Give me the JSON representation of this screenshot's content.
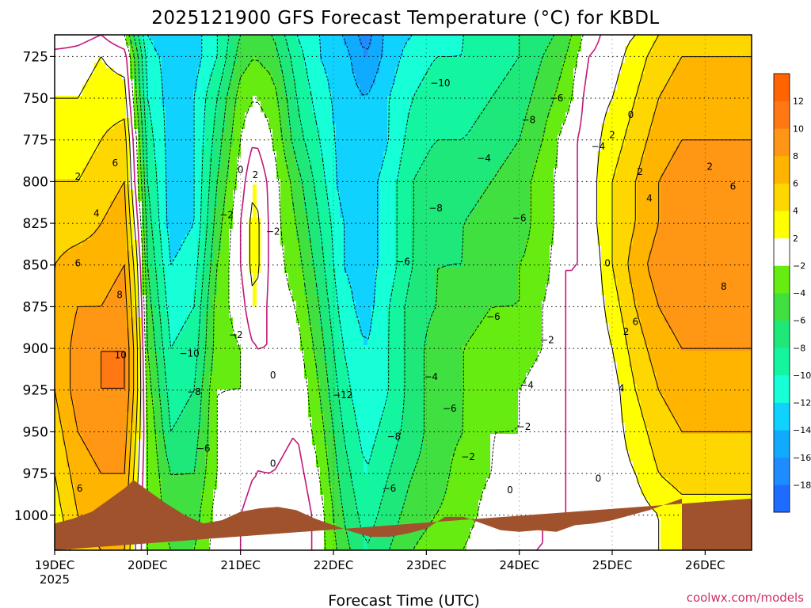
{
  "chart_data": {
    "type": "heatmap",
    "title": "2025121900 GFS Forecast Temperature (°C) for KBDL",
    "xlabel": "Forecast Time (UTC)",
    "ylabel": "",
    "credit": "coolwx.com/models",
    "x_ticks": [
      "19DEC",
      "20DEC",
      "21DEC",
      "22DEC",
      "23DEC",
      "24DEC",
      "25DEC",
      "26DEC"
    ],
    "x_year_label": "2025",
    "x_range_days": [
      0,
      7.5
    ],
    "y_ticks": [
      725,
      750,
      775,
      800,
      825,
      850,
      875,
      900,
      925,
      950,
      975,
      1000
    ],
    "y_range_hpa": [
      712,
      1021
    ],
    "y_direction": "pressure decreasing upward",
    "colorbar": {
      "levels": [
        -20,
        -18,
        -16,
        -14,
        -12,
        -10,
        -8,
        -6,
        -4,
        -2,
        2,
        4,
        6,
        8,
        10,
        12,
        14
      ],
      "tick_labels": [
        "-18",
        "-16",
        "-14",
        "-12",
        "-10",
        "-8",
        "-6",
        "-4",
        "-2",
        "2",
        "4",
        "6",
        "8",
        "10",
        "12"
      ],
      "colors": [
        "#1e6cff",
        "#1e8cff",
        "#10aaff",
        "#10d2ff",
        "#16ffd6",
        "#14f5a0",
        "#1ee87a",
        "#40e040",
        "#66ec10",
        "#ffffff",
        "#ffff00",
        "#ffd700",
        "#ffb400",
        "#ff9614",
        "#ff7814",
        "#ff6400"
      ]
    },
    "profiles": [
      {
        "t": 0.0,
        "temps": [
          -2,
          1,
          2,
          3,
          4,
          5,
          6,
          6,
          6,
          6,
          5,
          4,
          3,
          2
        ]
      },
      {
        "t": 0.25,
        "temps": [
          -1,
          1,
          2,
          3,
          4,
          5,
          7,
          8,
          9,
          9,
          8,
          7,
          6,
          5
        ]
      },
      {
        "t": 0.5,
        "temps": [
          0,
          2,
          3,
          4,
          5,
          6,
          7,
          8,
          10,
          10,
          9,
          8,
          7,
          6
        ]
      },
      {
        "t": 0.75,
        "temps": [
          -2,
          1,
          3,
          5,
          6,
          7,
          8,
          9,
          10,
          10,
          9,
          8,
          7,
          6
        ]
      },
      {
        "t": 0.9,
        "temps": [
          -8,
          -6,
          -5,
          -3,
          -2,
          0,
          2,
          3,
          4,
          4,
          3,
          2,
          1,
          1
        ]
      },
      {
        "t": 1.0,
        "temps": [
          -12,
          -11,
          -10,
          -9,
          -8,
          -7,
          -6,
          -5,
          -4,
          -3,
          -2,
          -2,
          -2,
          -2
        ]
      },
      {
        "t": 1.25,
        "temps": [
          -14,
          -13,
          -13,
          -13,
          -13,
          -13,
          -12,
          -11,
          -10,
          -9,
          -8,
          -6,
          -5,
          -4
        ]
      },
      {
        "t": 1.5,
        "temps": [
          -13,
          -13,
          -12,
          -12,
          -12,
          -12,
          -11,
          -10,
          -9,
          -8,
          -7,
          -6,
          -5,
          -4
        ]
      },
      {
        "t": 1.75,
        "temps": [
          -10,
          -10,
          -8,
          -7,
          -6,
          -5,
          -4,
          -3,
          -3,
          -2,
          -2,
          -2,
          -1,
          -1
        ]
      },
      {
        "t": 2.0,
        "temps": [
          -6,
          -5,
          -3,
          -2,
          -1,
          0,
          0,
          -1,
          -2,
          -2,
          -1,
          -1,
          0,
          0
        ]
      },
      {
        "t": 2.15,
        "temps": [
          -5,
          -4,
          -2,
          0,
          2,
          3,
          3,
          2,
          0,
          -1,
          0,
          0,
          1,
          1
        ]
      },
      {
        "t": 2.35,
        "temps": [
          -6,
          -5,
          -3,
          -2,
          -1,
          -1,
          -1,
          -1,
          0,
          -1,
          -1,
          0,
          1,
          1
        ]
      },
      {
        "t": 2.6,
        "temps": [
          -10,
          -9,
          -8,
          -7,
          -5,
          -4,
          -3,
          -2,
          -1,
          0,
          0,
          1,
          2,
          2
        ]
      },
      {
        "t": 2.85,
        "temps": [
          -12,
          -12,
          -11,
          -10,
          -9,
          -8,
          -7,
          -6,
          -5,
          -4,
          -3,
          -2,
          -1,
          -1
        ]
      },
      {
        "t": 3.1,
        "temps": [
          -14,
          -13,
          -13,
          -13,
          -13,
          -12,
          -12,
          -11,
          -10,
          -9,
          -8,
          -7,
          -6,
          -5
        ]
      },
      {
        "t": 3.35,
        "temps": [
          -17,
          -16,
          -14,
          -14,
          -13,
          -13,
          -13,
          -13,
          -12,
          -12,
          -11,
          -10,
          -9,
          -8
        ]
      },
      {
        "t": 3.6,
        "temps": [
          -13,
          -13,
          -12,
          -12,
          -11,
          -11,
          -11,
          -10,
          -10,
          -10,
          -9,
          -8,
          -7,
          -6
        ]
      },
      {
        "t": 3.85,
        "temps": [
          -12,
          -11,
          -10,
          -9,
          -8,
          -8,
          -8,
          -7,
          -7,
          -7,
          -7,
          -6,
          -5,
          -4
        ]
      },
      {
        "t": 4.1,
        "temps": [
          -11,
          -10,
          -9,
          -8,
          -7,
          -7,
          -6,
          -6,
          -5,
          -5,
          -5,
          -5,
          -4,
          -3
        ]
      },
      {
        "t": 4.4,
        "temps": [
          -10,
          -10,
          -9,
          -8,
          -7,
          -6,
          -6,
          -5,
          -4,
          -4,
          -4,
          -3,
          -3,
          -2
        ]
      },
      {
        "t": 4.7,
        "temps": [
          -9,
          -9,
          -8,
          -7,
          -6,
          -5,
          -5,
          -4,
          -3,
          -3,
          -2,
          -2,
          -1,
          0
        ]
      },
      {
        "t": 5.0,
        "temps": [
          -8,
          -8,
          -7,
          -6,
          -5,
          -5,
          -4,
          -4,
          -3,
          -2,
          -2,
          -1,
          -1,
          0
        ]
      },
      {
        "t": 5.25,
        "temps": [
          -7,
          -6,
          -5,
          -4,
          -3,
          -3,
          -3,
          -2,
          -2,
          -1,
          -1,
          -1,
          0,
          0
        ]
      },
      {
        "t": 5.5,
        "temps": [
          -5,
          -4,
          -3,
          -1,
          -1,
          -1,
          0,
          0,
          0,
          0,
          0,
          0,
          0,
          0
        ]
      },
      {
        "t": 5.75,
        "temps": [
          -1,
          0,
          1,
          1,
          1,
          1,
          0,
          0,
          0,
          0,
          0,
          0,
          0,
          0
        ]
      },
      {
        "t": 6.0,
        "temps": [
          1,
          1,
          2,
          3,
          4,
          4,
          4,
          3,
          2,
          1,
          1,
          1,
          0,
          0
        ]
      },
      {
        "t": 6.25,
        "temps": [
          2,
          3,
          4,
          5,
          6,
          6,
          7,
          6,
          5,
          4,
          3,
          2,
          1,
          1
        ]
      },
      {
        "t": 6.5,
        "temps": [
          4,
          5,
          6,
          7,
          8,
          8,
          9,
          8,
          7,
          6,
          5,
          4,
          2,
          2
        ]
      },
      {
        "t": 6.75,
        "temps": [
          5,
          6,
          7,
          8,
          9,
          9,
          10,
          9,
          8,
          7,
          6,
          5,
          3,
          3
        ]
      }
    ],
    "profile_levels_hpa": [
      712,
      725,
      750,
      775,
      800,
      825,
      850,
      875,
      900,
      925,
      950,
      975,
      1000,
      1021
    ],
    "terrain_hpa": [
      [
        0.0,
        1005
      ],
      [
        0.2,
        1002
      ],
      [
        0.4,
        998
      ],
      [
        0.6,
        990
      ],
      [
        0.75,
        984
      ],
      [
        0.85,
        979
      ],
      [
        1.0,
        985
      ],
      [
        1.2,
        993
      ],
      [
        1.4,
        1000
      ],
      [
        1.6,
        1005
      ],
      [
        1.8,
        1003
      ],
      [
        2.0,
        998
      ],
      [
        2.2,
        996
      ],
      [
        2.4,
        995
      ],
      [
        2.6,
        997
      ],
      [
        2.8,
        1002
      ],
      [
        3.0,
        1006
      ],
      [
        3.2,
        1010
      ],
      [
        3.4,
        1013
      ],
      [
        3.6,
        1013
      ],
      [
        3.8,
        1011
      ],
      [
        4.0,
        1008
      ],
      [
        4.2,
        1001
      ],
      [
        4.4,
        1001
      ],
      [
        4.6,
        1005
      ],
      [
        4.8,
        1009
      ],
      [
        5.0,
        1010
      ],
      [
        5.2,
        1009
      ],
      [
        5.4,
        1010
      ],
      [
        5.6,
        1006
      ],
      [
        5.8,
        1005
      ],
      [
        6.0,
        1003
      ],
      [
        6.2,
        1000
      ],
      [
        6.4,
        997
      ],
      [
        6.6,
        993
      ],
      [
        6.75,
        990
      ]
    ],
    "contour_labels": [
      {
        "t": 0.25,
        "p": 797,
        "text": "2"
      },
      {
        "t": 0.45,
        "p": 819,
        "text": "4"
      },
      {
        "t": 0.25,
        "p": 849,
        "text": "6"
      },
      {
        "t": 0.65,
        "p": 789,
        "text": "6"
      },
      {
        "t": 0.7,
        "p": 868,
        "text": "8"
      },
      {
        "t": 0.71,
        "p": 904,
        "text": "10"
      },
      {
        "t": 0.27,
        "p": 984,
        "text": "6"
      },
      {
        "t": 1.45,
        "p": 903,
        "text": "−10"
      },
      {
        "t": 1.5,
        "p": 926,
        "text": "−8"
      },
      {
        "t": 1.6,
        "p": 960,
        "text": "−6"
      },
      {
        "t": 1.85,
        "p": 820,
        "text": "−2"
      },
      {
        "t": 1.95,
        "p": 892,
        "text": "−2"
      },
      {
        "t": 2.0,
        "p": 793,
        "text": "0"
      },
      {
        "t": 2.16,
        "p": 796,
        "text": "2"
      },
      {
        "t": 2.35,
        "p": 830,
        "text": "−2"
      },
      {
        "t": 2.35,
        "p": 916,
        "text": "0"
      },
      {
        "t": 2.35,
        "p": 969,
        "text": "0"
      },
      {
        "t": 3.1,
        "p": 928,
        "text": "−12"
      },
      {
        "t": 3.65,
        "p": 953,
        "text": "−8"
      },
      {
        "t": 3.6,
        "p": 984,
        "text": "−6"
      },
      {
        "t": 3.75,
        "p": 848,
        "text": "−6"
      },
      {
        "t": 4.1,
        "p": 816,
        "text": "−8"
      },
      {
        "t": 4.15,
        "p": 741,
        "text": "−10"
      },
      {
        "t": 4.05,
        "p": 917,
        "text": "−4"
      },
      {
        "t": 4.25,
        "p": 936,
        "text": "−6"
      },
      {
        "t": 4.45,
        "p": 965,
        "text": "−2"
      },
      {
        "t": 4.62,
        "p": 786,
        "text": "−4"
      },
      {
        "t": 4.72,
        "p": 881,
        "text": "−6"
      },
      {
        "t": 5.0,
        "p": 822,
        "text": "−6"
      },
      {
        "t": 5.1,
        "p": 763,
        "text": "−8"
      },
      {
        "t": 5.4,
        "p": 750,
        "text": "−6"
      },
      {
        "t": 5.85,
        "p": 779,
        "text": "−4"
      },
      {
        "t": 6.0,
        "p": 772,
        "text": "2"
      },
      {
        "t": 6.2,
        "p": 760,
        "text": "0"
      },
      {
        "t": 5.3,
        "p": 895,
        "text": "−2"
      },
      {
        "t": 5.08,
        "p": 922,
        "text": "−4"
      },
      {
        "t": 5.05,
        "p": 947,
        "text": "−2"
      },
      {
        "t": 4.9,
        "p": 985,
        "text": "0"
      },
      {
        "t": 6.3,
        "p": 794,
        "text": "2"
      },
      {
        "t": 6.4,
        "p": 810,
        "text": "4"
      },
      {
        "t": 6.15,
        "p": 890,
        "text": "2"
      },
      {
        "t": 6.1,
        "p": 924,
        "text": "4"
      },
      {
        "t": 6.25,
        "p": 884,
        "text": "6"
      },
      {
        "t": 5.95,
        "p": 849,
        "text": "0"
      },
      {
        "t": 5.85,
        "p": 978,
        "text": "0"
      },
      {
        "t": 7.3,
        "p": 803,
        "text": "6"
      },
      {
        "t": 7.2,
        "p": 863,
        "text": "8"
      },
      {
        "t": 7.05,
        "p": 791,
        "text": "2"
      }
    ]
  }
}
